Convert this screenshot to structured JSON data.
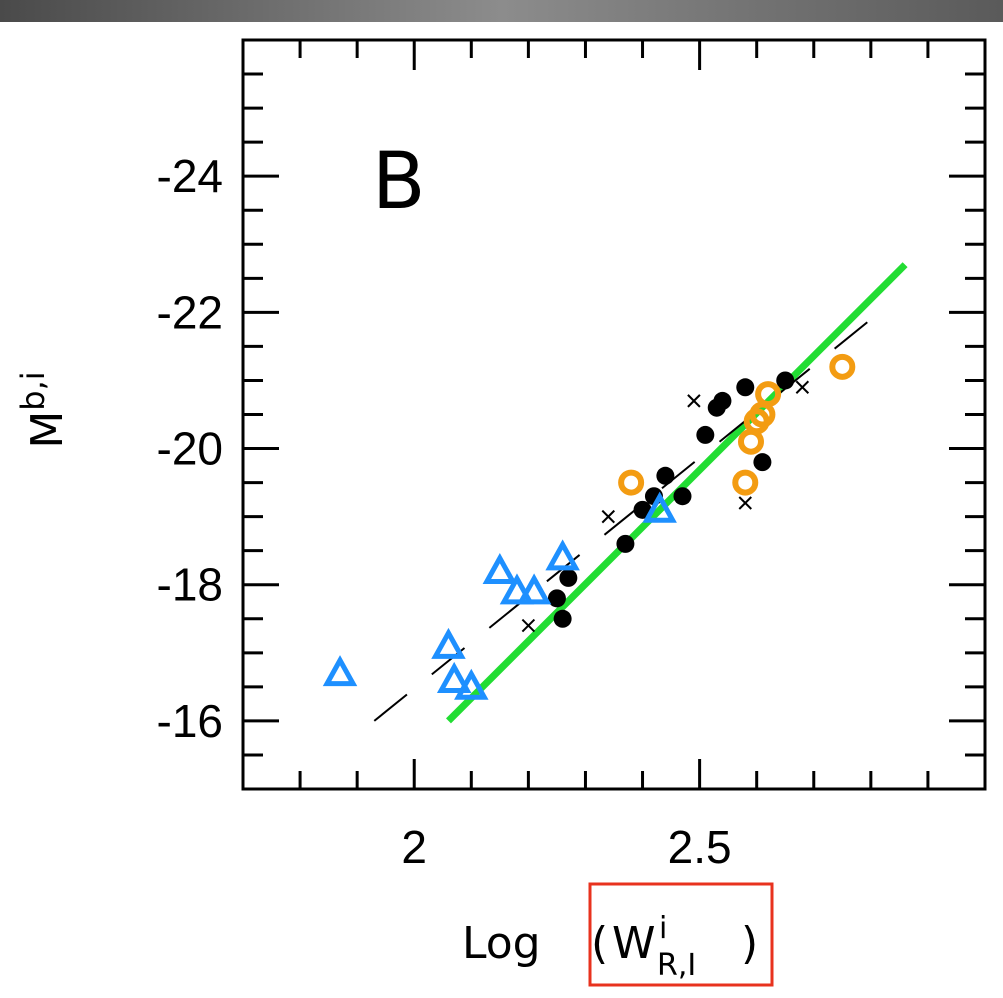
{
  "chart_data": {
    "type": "scatter",
    "panel_label": "B",
    "xlabel": "Log(Wⁱ_R,I)",
    "xlabel_parts": {
      "prefix": "Log",
      "open": "(",
      "base": "W",
      "superscript": "i",
      "subscript": "R,I",
      "close": ")"
    },
    "ylabel": "Mb,i",
    "ylabel_parts": {
      "base": "M",
      "superscript": "b,i"
    },
    "xlim": [
      1.7,
      3.0
    ],
    "ylim": [
      -15.0,
      -26.0
    ],
    "x_ticks": [
      2,
      2.5
    ],
    "x_tick_labels": [
      "2",
      "2.5"
    ],
    "y_ticks": [
      -24,
      -22,
      -20,
      -18,
      -16
    ],
    "y_tick_labels": [
      "-24",
      "-22",
      "-20",
      "-18",
      "-16"
    ],
    "grid": false,
    "highlight_box_color": "#e8321e",
    "series": [
      {
        "marker": "filled-circle",
        "color": "#000000",
        "points": [
          [
            2.25,
            -17.8
          ],
          [
            2.26,
            -17.5
          ],
          [
            2.27,
            -18.1
          ],
          [
            2.37,
            -18.6
          ],
          [
            2.4,
            -19.1
          ],
          [
            2.42,
            -19.3
          ],
          [
            2.44,
            -19.6
          ],
          [
            2.47,
            -19.3
          ],
          [
            2.51,
            -20.2
          ],
          [
            2.53,
            -20.6
          ],
          [
            2.54,
            -20.7
          ],
          [
            2.58,
            -20.9
          ],
          [
            2.61,
            -19.8
          ],
          [
            2.65,
            -21.0
          ]
        ]
      },
      {
        "marker": "cross",
        "color": "#000000",
        "points": [
          [
            2.2,
            -17.4
          ],
          [
            2.34,
            -19.0
          ],
          [
            2.49,
            -20.7
          ],
          [
            2.58,
            -19.2
          ],
          [
            2.68,
            -20.9
          ]
        ]
      },
      {
        "marker": "open-circle",
        "color": "#f39c12",
        "points": [
          [
            2.38,
            -19.5
          ],
          [
            2.58,
            -19.5
          ],
          [
            2.59,
            -20.1
          ],
          [
            2.6,
            -20.4
          ],
          [
            2.61,
            -20.5
          ],
          [
            2.62,
            -20.8
          ],
          [
            2.75,
            -21.2
          ]
        ]
      },
      {
        "marker": "open-triangle",
        "color": "#1e90ff",
        "points": [
          [
            1.87,
            -16.7
          ],
          [
            2.06,
            -17.1
          ],
          [
            2.07,
            -16.6
          ],
          [
            2.1,
            -16.5
          ],
          [
            2.15,
            -18.2
          ],
          [
            2.18,
            -17.9
          ],
          [
            2.21,
            -17.9
          ],
          [
            2.26,
            -18.4
          ],
          [
            2.43,
            -19.1
          ]
        ]
      }
    ],
    "lines": [
      {
        "style": "solid",
        "color": "#22dd33",
        "points": [
          [
            2.06,
            -16.0
          ],
          [
            2.86,
            -22.7
          ]
        ]
      },
      {
        "style": "dashed",
        "color": "#000000",
        "points": [
          [
            1.93,
            -16.0
          ],
          [
            2.83,
            -22.1
          ]
        ]
      }
    ]
  }
}
